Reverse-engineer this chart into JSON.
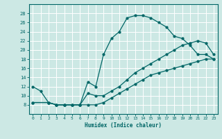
{
  "xlabel": "Humidex (Indice chaleur)",
  "bg_color": "#cce8e4",
  "line_color": "#006666",
  "xlim": [
    -0.5,
    23.5
  ],
  "ylim": [
    6,
    30
  ],
  "yticks": [
    8,
    10,
    12,
    14,
    16,
    18,
    20,
    22,
    24,
    26,
    28
  ],
  "xticks": [
    0,
    1,
    2,
    3,
    4,
    5,
    6,
    7,
    8,
    9,
    10,
    11,
    12,
    13,
    14,
    15,
    16,
    17,
    18,
    19,
    20,
    21,
    22,
    23
  ],
  "line1_x": [
    0,
    1,
    2,
    3,
    4,
    5,
    6,
    7,
    8,
    9,
    10,
    11,
    12,
    13,
    14,
    15,
    16,
    17,
    18,
    19,
    20,
    21,
    22,
    23
  ],
  "line1_y": [
    12,
    11,
    8.5,
    8,
    8,
    8,
    8,
    13,
    12,
    19,
    22.5,
    24,
    27,
    27.5,
    27.5,
    27,
    26,
    25,
    23,
    22.5,
    21,
    19,
    19,
    18
  ],
  "line2_x": [
    0,
    2,
    3,
    4,
    5,
    6,
    7,
    8,
    9,
    10,
    11,
    12,
    13,
    14,
    15,
    16,
    17,
    18,
    19,
    20,
    21,
    22,
    23
  ],
  "line2_y": [
    8.5,
    8.5,
    8,
    8,
    8,
    8,
    10.5,
    10,
    10,
    11,
    12,
    13.5,
    15,
    16,
    17,
    18,
    19,
    20,
    21,
    21.5,
    22,
    21.5,
    19
  ],
  "line3_x": [
    0,
    2,
    3,
    4,
    5,
    6,
    7,
    8,
    9,
    10,
    11,
    12,
    13,
    14,
    15,
    16,
    17,
    18,
    19,
    20,
    21,
    22,
    23
  ],
  "line3_y": [
    8.5,
    8.5,
    8,
    8,
    8,
    8,
    8,
    8,
    8.5,
    9.5,
    10.5,
    11.5,
    12.5,
    13.5,
    14.5,
    15,
    15.5,
    16,
    16.5,
    17,
    17.5,
    18,
    18
  ]
}
